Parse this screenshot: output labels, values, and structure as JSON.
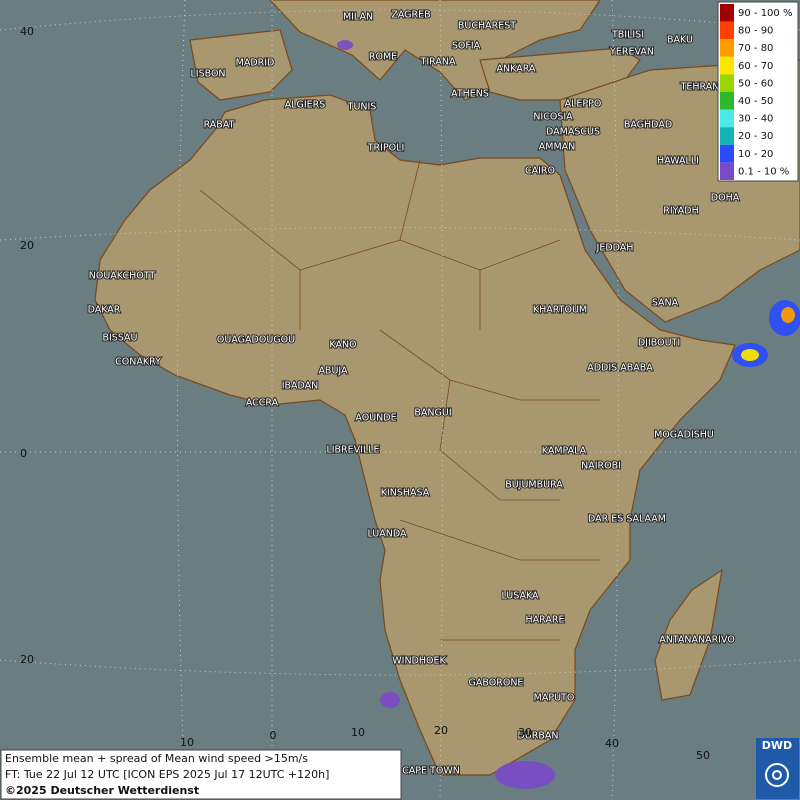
{
  "legend": [
    {
      "label": "90 - 100 %",
      "color": "#a00000"
    },
    {
      "label": "80 - 90",
      "color": "#ff4000"
    },
    {
      "label": "70 - 80",
      "color": "#ff9c00"
    },
    {
      "label": "60 - 70",
      "color": "#ffe600"
    },
    {
      "label": "50 - 60",
      "color": "#9ad600"
    },
    {
      "label": "40 - 50",
      "color": "#2eb82e"
    },
    {
      "label": "30 - 40",
      "color": "#4de8e8"
    },
    {
      "label": "20 - 30",
      "color": "#14b4b4"
    },
    {
      "label": "10 - 20",
      "color": "#2a4cff"
    },
    {
      "label": "0.1 - 10 %",
      "color": "#7a4ac8"
    }
  ],
  "cities": [
    "MILAN",
    "ZAGREB",
    "BUCHAREST",
    "MADRID",
    "ROME",
    "SOFIA",
    "TBILISI",
    "BAKU",
    "YEREVAN",
    "LISBON",
    "TIRANA",
    "ANKARA",
    "TEHRAN",
    "ATHENS",
    "ALGIERS",
    "TUNIS",
    "ALEPPO",
    "RABAT",
    "NICOSIA",
    "BAGHDAD",
    "DAMASCUS",
    "AMMAN",
    "TRIPOLI",
    "HAWALLI",
    "CAIRO",
    "DOHA",
    "RIYADH",
    "JEDDAH",
    "NOUAKCHOTT",
    "SANA",
    "DAKAR",
    "KHARTOUM",
    "BISSAU",
    "OUAGADOUGOU",
    "DJIBOUTI",
    "KANO",
    "CONAKRY",
    "ABUJA",
    "ADDIS ABABA",
    "IBADAN",
    "ACCRA",
    "BANGUI",
    "AOUNDE",
    "MOGADISHU",
    "LIBREVILLE",
    "KAMPALA",
    "NAIROBI",
    "BUJUMBURA",
    "KINSHASA",
    "DAR ES SALAAM",
    "LUANDA",
    "LUSAKA",
    "HARARE",
    "ANTANANARIVO",
    "WINDHOEK",
    "GABORONE",
    "MAPUTO",
    "DURBAN",
    "CAPE TOWN"
  ],
  "grid_labels": {
    "left": [
      "40",
      "20",
      "0",
      "20"
    ],
    "bottom": [
      "10",
      "0",
      "10",
      "20",
      "30",
      "40",
      "50"
    ]
  },
  "caption": [
    "Ensemble mean + spread of Mean wind speed >15m/s",
    "FT: Tue 22 Jul 12 UTC [ICON EPS 2025 Jul 17 12UTC +120h]",
    "©2025 Deutscher Wetterdienst"
  ],
  "logo": "DWD"
}
